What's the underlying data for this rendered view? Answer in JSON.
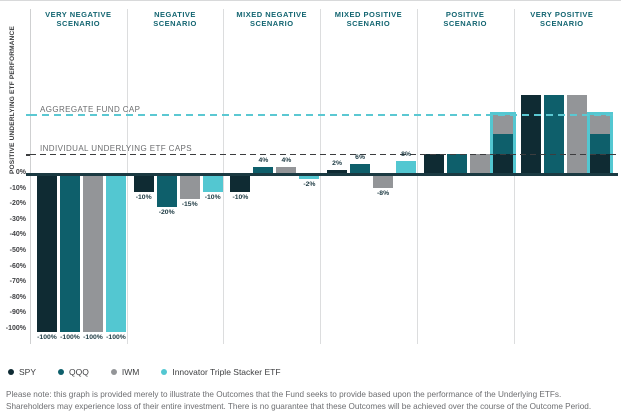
{
  "axis": {
    "label": "POSITIVE UNDERLYING ETF PERFORMANCE"
  },
  "caps": {
    "aggregate": {
      "label": "AGGREGATE FUND CAP",
      "value_pct": 37.5,
      "color": "#5bc8d2"
    },
    "individual": {
      "label": "INDIVIDUAL UNDERLYING ETF CAPS",
      "value_pct": 12.5,
      "color": "#3c3d3f"
    }
  },
  "note": {
    "line1": "Please note: this graph is provided merely to illustrate the Outcomes that the Fund seeks to provide based upon the performance of the Underlying ETFs.",
    "line2": "Shareholders may experience loss of their entire investment. There is no guarantee that these Outcomes will be achieved over the course of the Outcome Period."
  },
  "chart_data": {
    "type": "bar",
    "title": "",
    "xlabel": "",
    "ylabel": "POSITIVE UNDERLYING ETF PERFORMANCE",
    "ylim": [
      -100,
      55
    ],
    "grid": false,
    "legend_position": "bottom",
    "categories": [
      {
        "line1": "VERY NEGATIVE",
        "line2": "SCENARIO"
      },
      {
        "line1": "NEGATIVE",
        "line2": "SCENARIO"
      },
      {
        "line1": "MIXED NEGATIVE",
        "line2": "SCENARIO"
      },
      {
        "line1": "MIXED POSITIVE",
        "line2": "SCENARIO"
      },
      {
        "line1": "POSITIVE",
        "line2": "SCENARIO"
      },
      {
        "line1": "VERY POSITIVE",
        "line2": "SCENARIO"
      }
    ],
    "yticks": [
      0,
      -10,
      -20,
      -30,
      -40,
      -50,
      -60,
      -70,
      -80,
      -90,
      -100
    ],
    "series": [
      {
        "name": "SPY",
        "color": "#0f2b33",
        "values": [
          -100,
          -10,
          -10,
          2,
          12.5,
          50
        ],
        "labels": [
          "-100%",
          "-10%",
          "-10%",
          "2%",
          "",
          ""
        ]
      },
      {
        "name": "QQQ",
        "color": "#0e5f6b",
        "values": [
          -100,
          -20,
          4,
          6,
          12.5,
          50
        ],
        "labels": [
          "-100%",
          "-20%",
          "4%",
          "6%",
          "",
          ""
        ]
      },
      {
        "name": "IWM",
        "color": "#939598",
        "values": [
          -100,
          -15,
          4,
          -8,
          12.5,
          50
        ],
        "labels": [
          "-100%",
          "-15%",
          "4%",
          "-8%",
          "",
          ""
        ]
      },
      {
        "name": "Innovator Triple Stacker ETF",
        "color": "#53c7d1",
        "values": [
          -100,
          -10,
          -2,
          8,
          37.5,
          37.5
        ],
        "labels": [
          "-100%",
          "-10%",
          "-2%",
          "8%",
          "",
          ""
        ],
        "stacked_display": {
          "groups": [
            4,
            5
          ],
          "segments": [
            12.5,
            12.5,
            12.5
          ],
          "segment_colors": [
            "#0f2b33",
            "#0e5f6b",
            "#939598"
          ]
        }
      }
    ]
  }
}
